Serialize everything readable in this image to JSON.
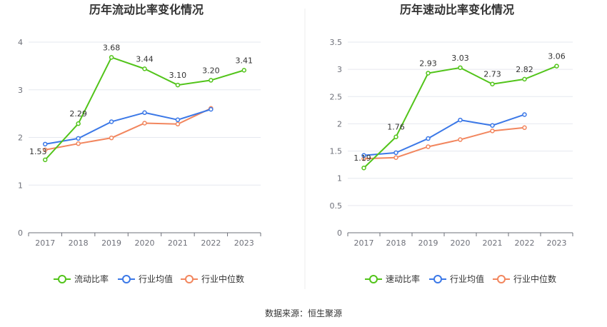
{
  "source_text": "数据来源：恒生聚源",
  "colors": {
    "green": "#52c41a",
    "blue": "#3b78e7",
    "orange": "#f2865e"
  },
  "chart_data": [
    {
      "type": "line",
      "title": "历年流动比率变化情况",
      "categories": [
        "2017",
        "2018",
        "2019",
        "2020",
        "2021",
        "2022",
        "2023"
      ],
      "ylim": [
        0,
        4
      ],
      "yticks": [
        0,
        1,
        2,
        3,
        4
      ],
      "ytick_labels": [
        "0",
        "1",
        "2",
        "3",
        "4"
      ],
      "series": [
        {
          "name": "流动比率",
          "color_key": "green",
          "values": [
            1.53,
            2.29,
            3.68,
            3.44,
            3.1,
            3.2,
            3.41
          ],
          "labels": [
            "1.53",
            "2.29",
            "3.68",
            "3.44",
            "3.10",
            "3.20",
            "3.41"
          ]
        },
        {
          "name": "行业均值",
          "color_key": "blue",
          "values": [
            1.86,
            1.98,
            2.33,
            2.52,
            2.37,
            2.59,
            null
          ]
        },
        {
          "name": "行业中位数",
          "color_key": "orange",
          "values": [
            1.74,
            1.87,
            1.99,
            2.3,
            2.28,
            2.61,
            null
          ]
        }
      ]
    },
    {
      "type": "line",
      "title": "历年速动比率变化情况",
      "categories": [
        "2017",
        "2018",
        "2019",
        "2020",
        "2021",
        "2022",
        "2023"
      ],
      "ylim": [
        0,
        3.5
      ],
      "yticks": [
        0,
        0.5,
        1,
        1.5,
        2,
        2.5,
        3,
        3.5
      ],
      "ytick_labels": [
        "0",
        "0.5",
        "1",
        "1.5",
        "2",
        "2.5",
        "3",
        "3.5"
      ],
      "series": [
        {
          "name": "速动比率",
          "color_key": "green",
          "values": [
            1.19,
            1.76,
            2.93,
            3.03,
            2.73,
            2.82,
            3.06
          ],
          "labels": [
            "1.19",
            "1.76",
            "2.93",
            "3.03",
            "2.73",
            "2.82",
            "3.06"
          ]
        },
        {
          "name": "行业均值",
          "color_key": "blue",
          "values": [
            1.42,
            1.47,
            1.73,
            2.07,
            1.97,
            2.17,
            null
          ]
        },
        {
          "name": "行业中位数",
          "color_key": "orange",
          "values": [
            1.36,
            1.38,
            1.58,
            1.71,
            1.87,
            1.93,
            null
          ]
        }
      ]
    }
  ]
}
